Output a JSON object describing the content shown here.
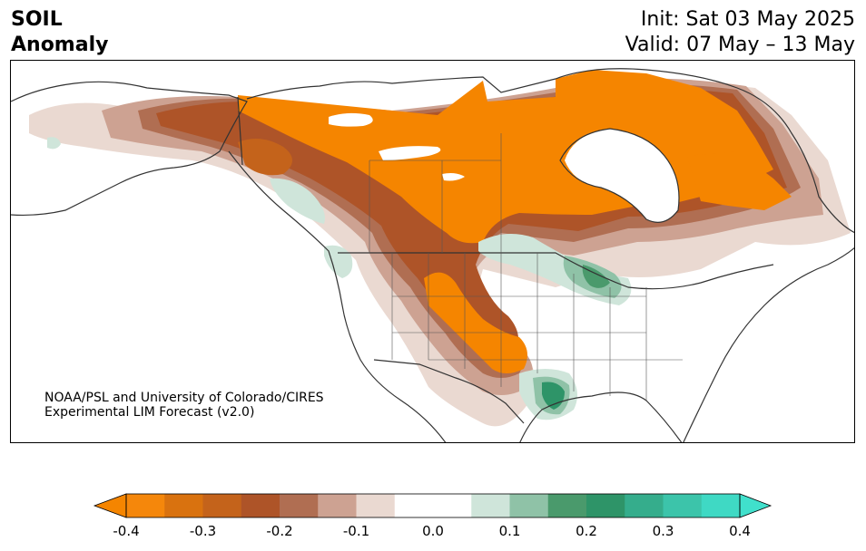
{
  "header": {
    "title_line1": "SOIL",
    "title_line2": "Anomaly",
    "init": "Init: Sat 03 May 2025",
    "valid": "Valid: 07 May – 13 May"
  },
  "credit": {
    "line1": "NOAA/PSL and University of Colorado/CIRES",
    "line2": "Experimental LIM Forecast (v2.0)"
  },
  "colorbar": {
    "min": -0.4,
    "max": 0.4,
    "tick_labels": [
      "-0.4",
      "-0.3",
      "-0.2",
      "-0.1",
      "0.0",
      "0.1",
      "0.2",
      "0.3",
      "0.4"
    ],
    "colors": [
      "#f5870b",
      "#d9720f",
      "#c4631b",
      "#ae5428",
      "#b06e52",
      "#cda292",
      "#ead9d1",
      "#ffffff",
      "#ffffff",
      "#cfe5da",
      "#8fc2a7",
      "#4a9a6c",
      "#2e9468",
      "#35ad8c",
      "#3cc4aa",
      "#3fd9c4"
    ],
    "under_color": "#f58500",
    "over_color": "#40e0cc"
  },
  "legend_colors": {
    "dry_strong": "#f58500",
    "dry_mid": "#b05a2c",
    "dry_light": "#d8b0a0",
    "wet_light": "#cfe5da",
    "wet_mid": "#4a9a6c",
    "wet_strong": "#2e9468"
  }
}
